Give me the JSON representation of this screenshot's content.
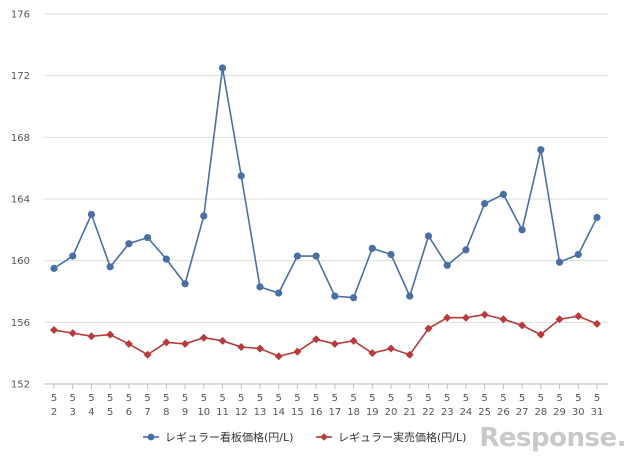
{
  "chart_data": {
    "type": "line",
    "title": "",
    "xlabel": "",
    "ylabel": "",
    "ylim": [
      152,
      176
    ],
    "yticks": [
      152,
      156,
      160,
      164,
      168,
      172,
      176
    ],
    "grid": "horizontal",
    "legend_position": "bottom",
    "x": [
      [
        "5",
        "2"
      ],
      [
        "5",
        "3"
      ],
      [
        "5",
        "4"
      ],
      [
        "5",
        "5"
      ],
      [
        "5",
        "6"
      ],
      [
        "5",
        "7"
      ],
      [
        "5",
        "8"
      ],
      [
        "5",
        "9"
      ],
      [
        "5",
        "10"
      ],
      [
        "5",
        "11"
      ],
      [
        "5",
        "12"
      ],
      [
        "5",
        "13"
      ],
      [
        "5",
        "14"
      ],
      [
        "5",
        "15"
      ],
      [
        "5",
        "16"
      ],
      [
        "5",
        "17"
      ],
      [
        "5",
        "18"
      ],
      [
        "5",
        "19"
      ],
      [
        "5",
        "20"
      ],
      [
        "5",
        "21"
      ],
      [
        "5",
        "22"
      ],
      [
        "5",
        "23"
      ],
      [
        "5",
        "24"
      ],
      [
        "5",
        "25"
      ],
      [
        "5",
        "26"
      ],
      [
        "5",
        "27"
      ],
      [
        "5",
        "28"
      ],
      [
        "5",
        "29"
      ],
      [
        "5",
        "30"
      ],
      [
        "5",
        "31"
      ]
    ],
    "series": [
      {
        "name": "レギュラー看板価格(円/L)",
        "color": "#4a6fa5",
        "marker": "circle",
        "values": [
          159.5,
          160.3,
          163.0,
          159.6,
          161.1,
          161.5,
          160.1,
          158.5,
          162.9,
          172.5,
          165.5,
          158.3,
          157.9,
          160.3,
          160.3,
          157.7,
          157.6,
          160.8,
          160.4,
          157.7,
          161.6,
          159.7,
          160.7,
          163.7,
          164.3,
          162.0,
          167.2,
          159.9,
          160.4,
          162.8
        ]
      },
      {
        "name": "レギュラー実売価格(円/L)",
        "color": "#b83a3a",
        "marker": "diamond",
        "values": [
          155.5,
          155.3,
          155.1,
          155.2,
          154.6,
          153.9,
          154.7,
          154.6,
          155.0,
          154.8,
          154.4,
          154.3,
          153.8,
          154.1,
          154.9,
          154.6,
          154.8,
          154.0,
          154.3,
          153.9,
          155.6,
          156.3,
          156.3,
          156.5,
          156.2,
          155.8,
          155.2,
          156.2,
          156.4,
          155.9
        ]
      }
    ]
  },
  "logo_text": "Response."
}
